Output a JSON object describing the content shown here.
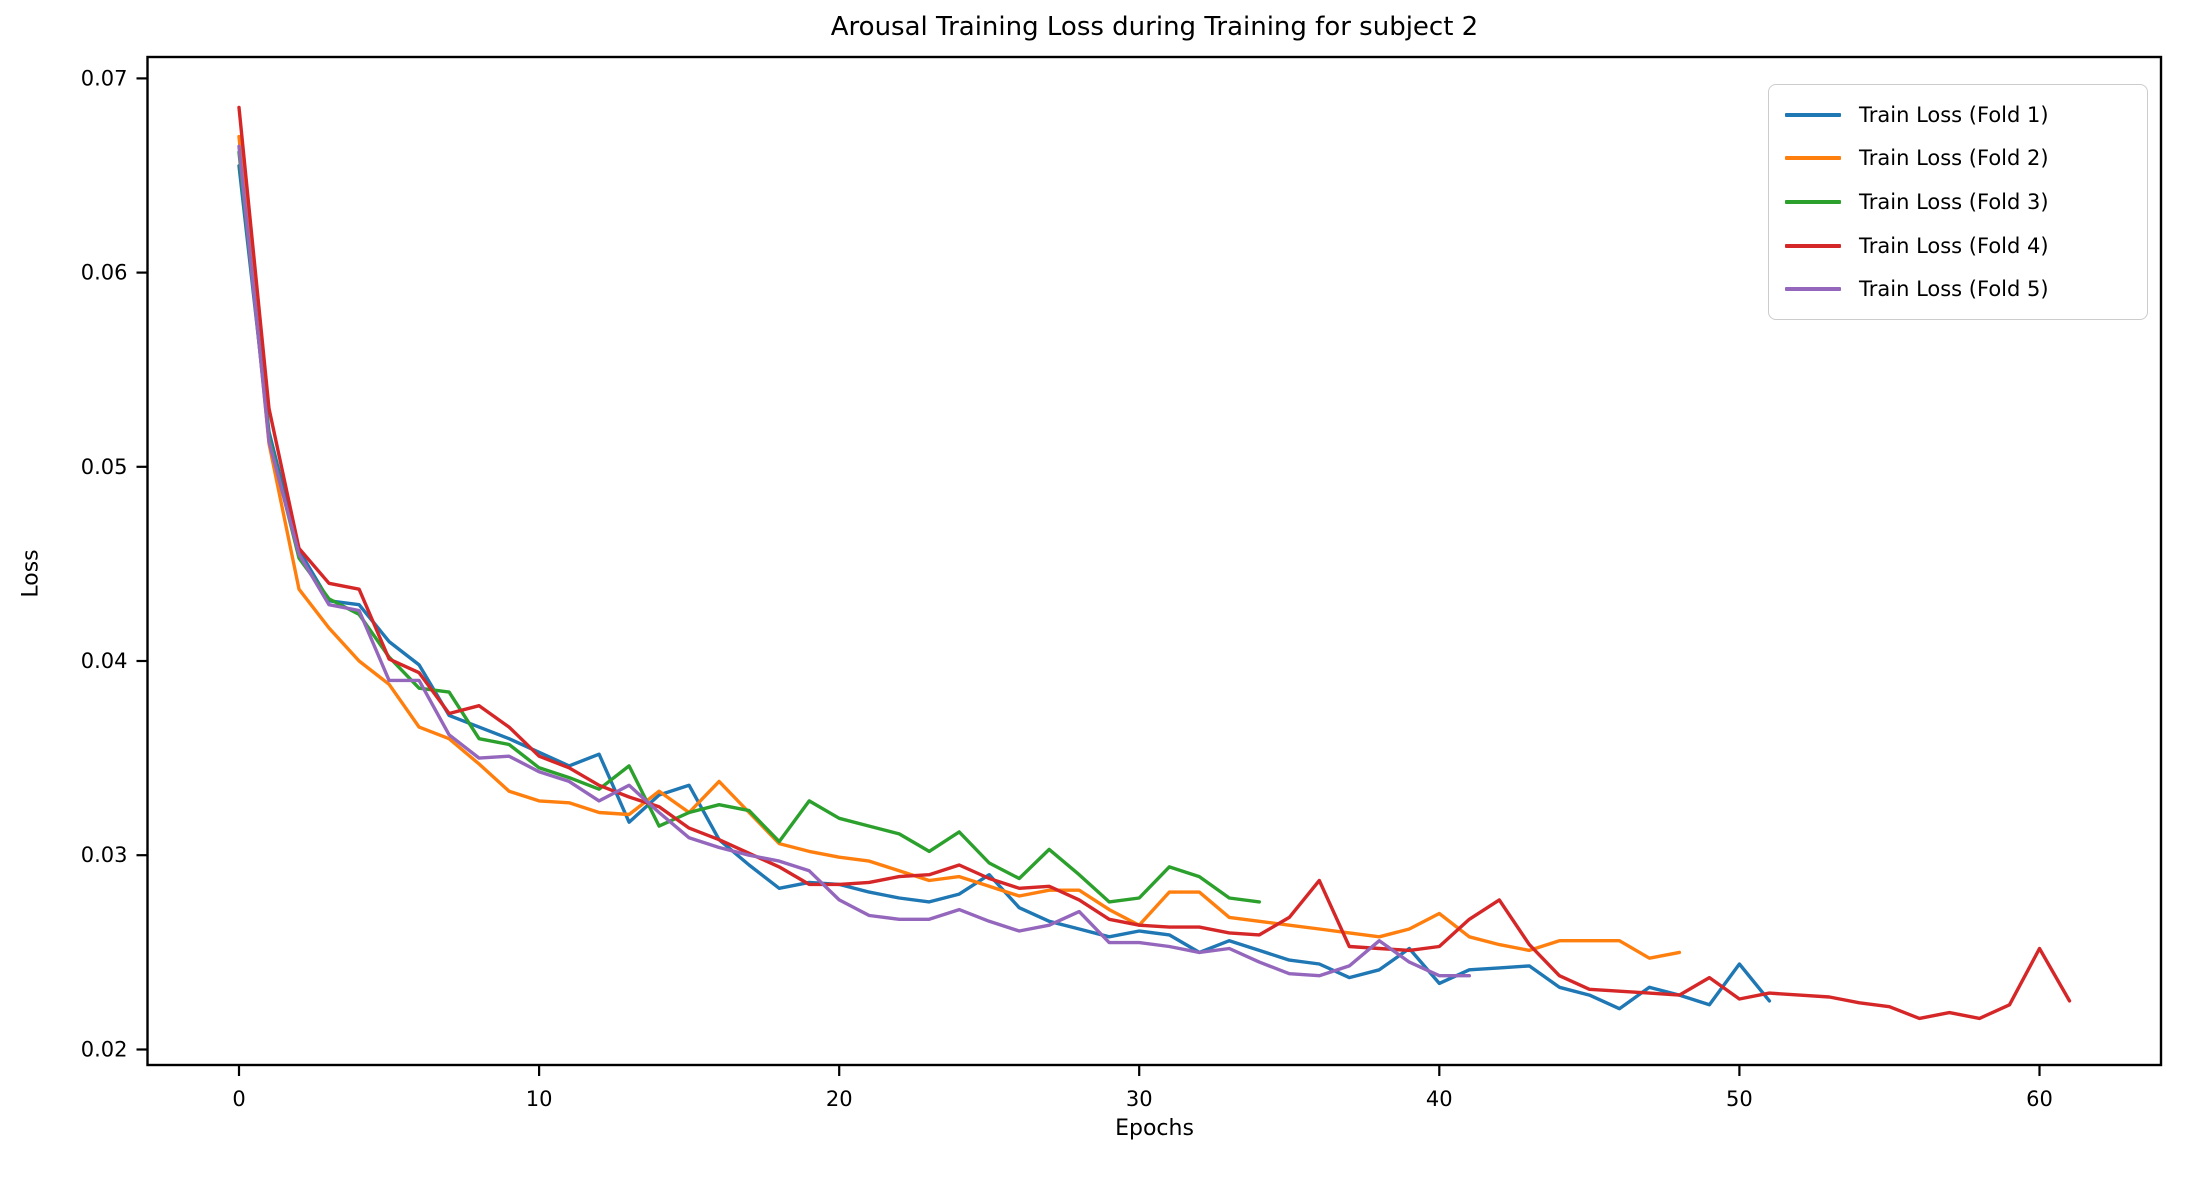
{
  "chart_data": {
    "type": "line",
    "title": "Arousal Training Loss during Training for subject 2",
    "xlabel": "Epochs",
    "ylabel": "Loss",
    "x_start": 0,
    "x_step": 1,
    "xlim": [
      -3.05,
      64.05
    ],
    "ylim": [
      0.0192,
      0.0711
    ],
    "x_ticks": [
      0,
      10,
      20,
      30,
      40,
      50,
      60
    ],
    "y_ticks": [
      0.02,
      0.03,
      0.04,
      0.05,
      0.06,
      0.07
    ],
    "grid": false,
    "legend_position": "upper right",
    "axis_color": "#000000",
    "series": [
      {
        "name": "Train Loss (Fold 1)",
        "color": "#1f77b4",
        "values": [
          0.0655,
          0.0518,
          0.0457,
          0.0431,
          0.0429,
          0.041,
          0.0398,
          0.0372,
          0.0366,
          0.036,
          0.0353,
          0.0346,
          0.0352,
          0.0317,
          0.0331,
          0.0336,
          0.0308,
          0.0295,
          0.0283,
          0.0286,
          0.0285,
          0.0281,
          0.0278,
          0.0276,
          0.028,
          0.029,
          0.0273,
          0.0266,
          0.0262,
          0.0258,
          0.0261,
          0.0259,
          0.025,
          0.0256,
          0.0251,
          0.0246,
          0.0244,
          0.0237,
          0.0241,
          0.0252,
          0.0234,
          0.0241,
          0.0242,
          0.0243,
          0.0232,
          0.0228,
          0.0221,
          0.0232,
          0.0228,
          0.0223,
          0.0244,
          0.0225
        ]
      },
      {
        "name": "Train Loss (Fold 2)",
        "color": "#ff7f0e",
        "values": [
          0.067,
          0.0512,
          0.0437,
          0.0417,
          0.04,
          0.0388,
          0.0366,
          0.036,
          0.0347,
          0.0333,
          0.0328,
          0.0327,
          0.0322,
          0.0321,
          0.0333,
          0.0322,
          0.0338,
          0.0322,
          0.0306,
          0.0302,
          0.0299,
          0.0297,
          0.0292,
          0.0287,
          0.0289,
          0.0284,
          0.0279,
          0.0282,
          0.0282,
          0.0272,
          0.0264,
          0.0281,
          0.0281,
          0.0268,
          0.0266,
          0.0264,
          0.0262,
          0.026,
          0.0258,
          0.0262,
          0.027,
          0.0258,
          0.0254,
          0.0251,
          0.0256,
          0.0256,
          0.0256,
          0.0247,
          0.025
        ]
      },
      {
        "name": "Train Loss (Fold 3)",
        "color": "#2ca02c",
        "values": [
          0.0662,
          0.0515,
          0.0453,
          0.0432,
          0.0424,
          0.0402,
          0.0386,
          0.0384,
          0.036,
          0.0357,
          0.0345,
          0.034,
          0.0334,
          0.0346,
          0.0315,
          0.0322,
          0.0326,
          0.0323,
          0.0307,
          0.0328,
          0.0319,
          0.0315,
          0.0311,
          0.0302,
          0.0312,
          0.0296,
          0.0288,
          0.0303,
          0.029,
          0.0276,
          0.0278,
          0.0294,
          0.0289,
          0.0278,
          0.0276
        ]
      },
      {
        "name": "Train Loss (Fold 4)",
        "color": "#d62728",
        "values": [
          0.0685,
          0.053,
          0.0458,
          0.044,
          0.0437,
          0.0401,
          0.0394,
          0.0373,
          0.0377,
          0.0366,
          0.0351,
          0.0345,
          0.0336,
          0.033,
          0.0325,
          0.0314,
          0.0308,
          0.0301,
          0.0294,
          0.0285,
          0.0285,
          0.0286,
          0.0289,
          0.029,
          0.0295,
          0.0288,
          0.0283,
          0.0284,
          0.0277,
          0.0267,
          0.0264,
          0.0263,
          0.0263,
          0.026,
          0.0259,
          0.0268,
          0.0287,
          0.0253,
          0.0252,
          0.0251,
          0.0253,
          0.0267,
          0.0277,
          0.0254,
          0.0238,
          0.0231,
          0.023,
          0.0229,
          0.0228,
          0.0237,
          0.0226,
          0.0229,
          0.0228,
          0.0227,
          0.0224,
          0.0222,
          0.0216,
          0.0219,
          0.0216,
          0.0223,
          0.0252,
          0.0225
        ]
      },
      {
        "name": "Train Loss (Fold 5)",
        "color": "#9467bd",
        "values": [
          0.0665,
          0.0513,
          0.0455,
          0.0429,
          0.0426,
          0.039,
          0.039,
          0.0362,
          0.035,
          0.0351,
          0.0343,
          0.0338,
          0.0328,
          0.0336,
          0.0322,
          0.0309,
          0.0304,
          0.03,
          0.0297,
          0.0292,
          0.0277,
          0.0269,
          0.0267,
          0.0267,
          0.0272,
          0.0266,
          0.0261,
          0.0264,
          0.0271,
          0.0255,
          0.0255,
          0.0253,
          0.025,
          0.0252,
          0.0245,
          0.0239,
          0.0238,
          0.0243,
          0.0256,
          0.0245,
          0.0238,
          0.0238
        ]
      }
    ]
  }
}
